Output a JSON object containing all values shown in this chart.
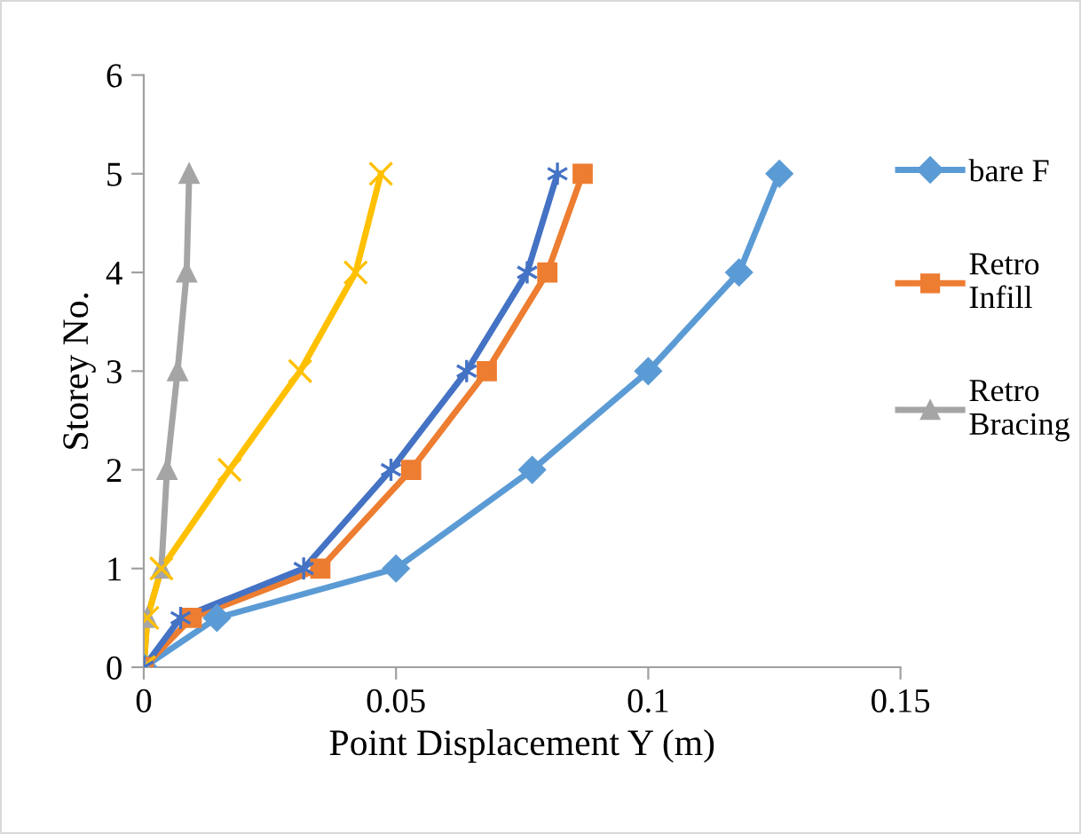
{
  "chart_data": {
    "type": "line",
    "xlabel": "Point Displacement Y (m)",
    "ylabel": "Storey No.",
    "xlim": [
      0,
      0.15
    ],
    "xticks": [
      0,
      0.05,
      0.1,
      0.15
    ],
    "ylim": [
      0,
      6
    ],
    "yticks": [
      0,
      1,
      2,
      3,
      4,
      5,
      6
    ],
    "grid": false,
    "legend": "right",
    "line_style": "solid",
    "series": [
      {
        "name": "bare F",
        "color": "#5b9bd5",
        "marker": "diamond",
        "x": [
          0,
          0.0145,
          0.05,
          0.077,
          0.1,
          0.118,
          0.126
        ],
        "values": [
          0,
          0.5,
          1,
          2,
          3,
          4,
          5
        ]
      },
      {
        "name": "Retro Infill",
        "color": "#ed7d31",
        "marker": "square",
        "x": [
          0,
          0.0095,
          0.035,
          0.053,
          0.068,
          0.08,
          0.087
        ],
        "values": [
          0,
          0.5,
          1,
          2,
          3,
          4,
          5
        ]
      },
      {
        "name": "Retro Bracing",
        "color": "#a5a5a5",
        "marker": "triangle",
        "x": [
          0,
          0.0007,
          0.0035,
          0.0046,
          0.0067,
          0.0085,
          0.009
        ],
        "values": [
          0,
          0.5,
          1,
          2,
          3,
          4,
          5
        ]
      },
      {
        "color": "#ffc000",
        "marker": "cross",
        "x": [
          0,
          0.0007,
          0.0035,
          0.017,
          0.031,
          0.042,
          0.047
        ],
        "values": [
          0,
          0.5,
          1,
          2,
          3,
          4,
          5
        ]
      },
      {
        "color": "#4472c4",
        "marker": "cross",
        "x": [
          0,
          0.0073,
          0.0317,
          0.049,
          0.064,
          0.076,
          0.082
        ],
        "values": [
          0,
          0.5,
          1,
          2,
          3,
          4,
          5
        ]
      }
    ]
  }
}
